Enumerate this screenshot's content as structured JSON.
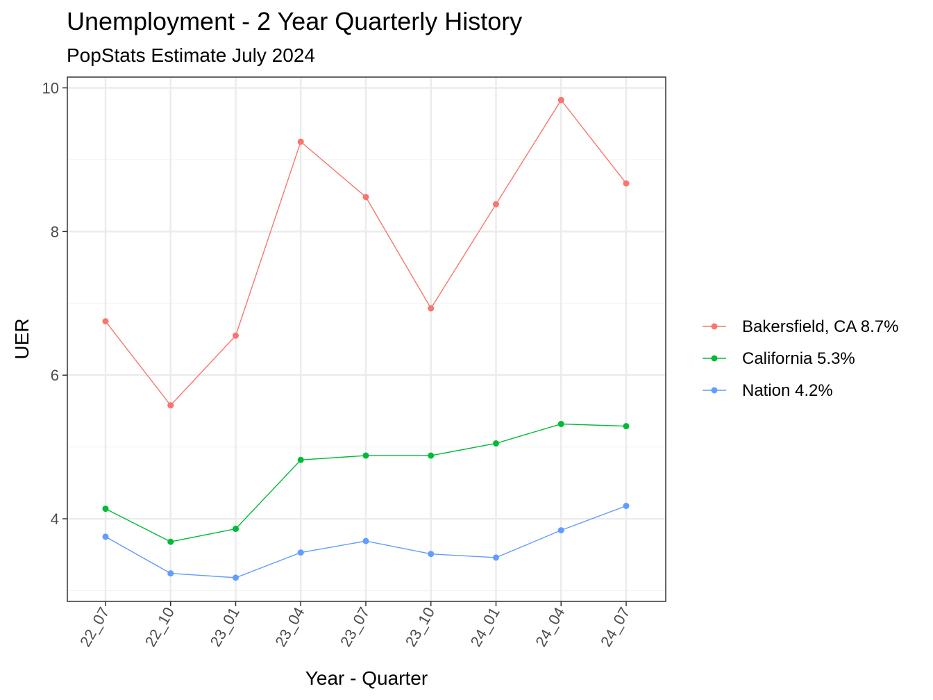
{
  "chart_data": {
    "type": "line",
    "title": "Unemployment - 2 Year Quarterly History",
    "subtitle": "PopStats Estimate July 2024",
    "xlabel": "Year - Quarter",
    "ylabel": "UER",
    "categories": [
      "22_07",
      "22_10",
      "23_01",
      "23_04",
      "23_07",
      "23_10",
      "24_01",
      "24_04",
      "24_07"
    ],
    "ylim": [
      2.85,
      10.15
    ],
    "yticks": [
      4,
      6,
      8,
      10
    ],
    "grid": true,
    "legend_position": "right",
    "series": [
      {
        "name": "Bakersfield, CA 8.7%",
        "color": "#F8766D",
        "values": [
          6.75,
          5.58,
          6.55,
          9.25,
          8.48,
          6.93,
          8.38,
          9.83,
          8.67
        ]
      },
      {
        "name": "California 5.3%",
        "color": "#00BA38",
        "values": [
          4.14,
          3.68,
          3.86,
          4.82,
          4.88,
          4.88,
          5.05,
          5.32,
          5.29
        ]
      },
      {
        "name": "Nation 4.2%",
        "color": "#619CFF",
        "values": [
          3.75,
          3.24,
          3.18,
          3.53,
          3.69,
          3.51,
          3.46,
          3.84,
          4.18
        ]
      }
    ]
  }
}
